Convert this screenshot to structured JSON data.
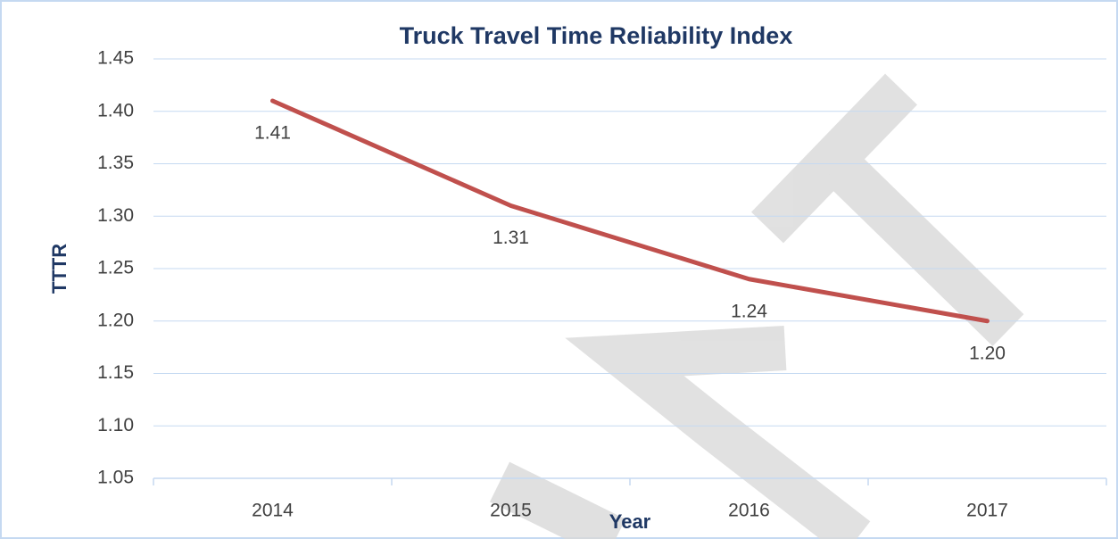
{
  "chart_data": {
    "type": "line",
    "title": "Truck Travel Time Reliability Index",
    "x_label": "Year",
    "y_label": "TTTR",
    "categories": [
      "2014",
      "2015",
      "2016",
      "2017"
    ],
    "series": [
      {
        "name": "TTTR",
        "color": "#c0504d",
        "values": [
          1.41,
          1.31,
          1.24,
          1.2
        ],
        "value_labels": [
          "1.41",
          "1.31",
          "1.24",
          "1.20"
        ]
      }
    ],
    "ylim": [
      1.05,
      1.45
    ],
    "yticks": [
      1.05,
      {
        "value": 1.1,
        "label": "1.10"
      },
      1.15,
      {
        "value": 1.2,
        "label": "1.20"
      },
      1.25,
      {
        "value": 1.3,
        "label": "1.30"
      },
      1.35,
      {
        "value": 1.4,
        "label": "1.40"
      },
      1.45
    ],
    "grid": true
  }
}
